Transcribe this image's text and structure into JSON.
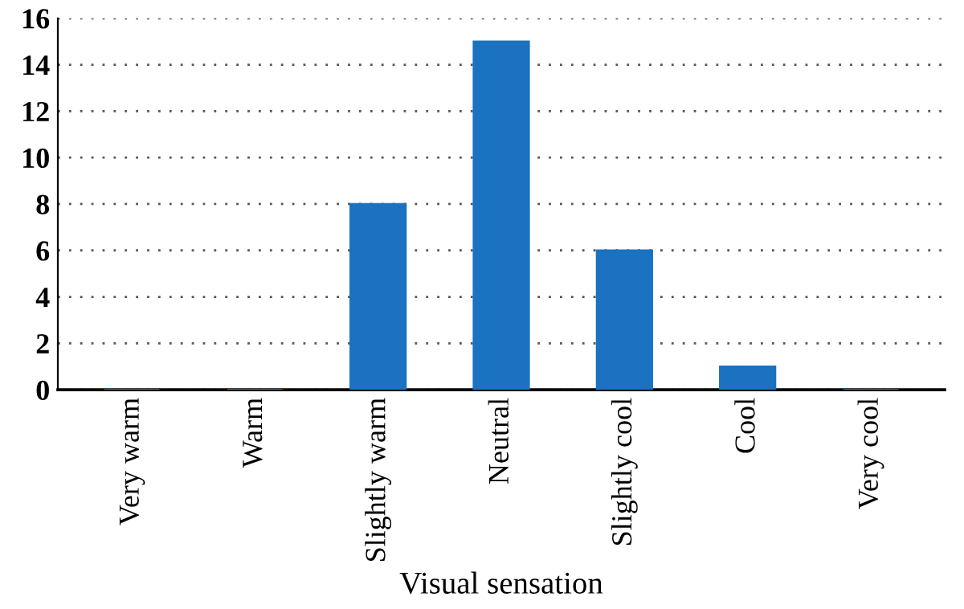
{
  "chart_data": {
    "type": "bar",
    "xlabel": "Visual sensation",
    "categories": [
      "Very warm",
      "Warm",
      "Slightly warm",
      "Neutral",
      "Slightly cool",
      "Cool",
      "Very cool"
    ],
    "values": [
      0,
      0,
      8,
      15,
      6,
      1,
      0
    ],
    "color": "#1a72c0",
    "ylim": [
      0,
      16
    ],
    "yticks": [
      0,
      2,
      4,
      6,
      8,
      10,
      12,
      14,
      16
    ],
    "grid": "y"
  }
}
